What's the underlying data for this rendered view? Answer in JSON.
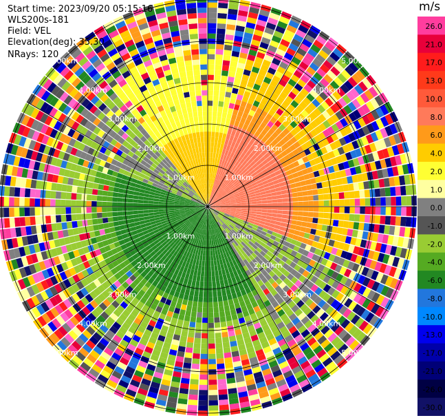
{
  "info": {
    "start_time": "Start time: 2023/09/20 05:15:16",
    "instrument": "WLS200s-181",
    "field": "Field: VEL",
    "elevation": "Elevation(deg): 35.30",
    "nrays": "NRays: 120"
  },
  "colorbar": {
    "title": "m/s",
    "ticks": [
      "26.0",
      "21.0",
      "17.0",
      "13.0",
      "10.0",
      "8.0",
      "6.0",
      "4.0",
      "2.0",
      "1.0",
      "0.0",
      "-1.0",
      "-2.0",
      "-4.0",
      "-6.0",
      "-8.0",
      "-10.0",
      "-13.0",
      "-17.0",
      "-21.0",
      "-26.0",
      "-30.0"
    ],
    "colors": [
      "#ff3d9e",
      "#e8003a",
      "#ff1c1c",
      "#ff3a1a",
      "#ff5a3a",
      "#ff7a5a",
      "#ff9a1a",
      "#ffcc00",
      "#ffff33",
      "#ffffa0",
      "#808080",
      "#555555",
      "#99cc33",
      "#55aa22",
      "#228822",
      "#2277dd",
      "#0088ff",
      "#0000ee",
      "#0000aa",
      "#000077",
      "#000044",
      "#111166"
    ]
  },
  "range_rings": [
    "1.00km",
    "2.00km",
    "3.00km",
    "4.00km",
    "5.00km"
  ]
}
